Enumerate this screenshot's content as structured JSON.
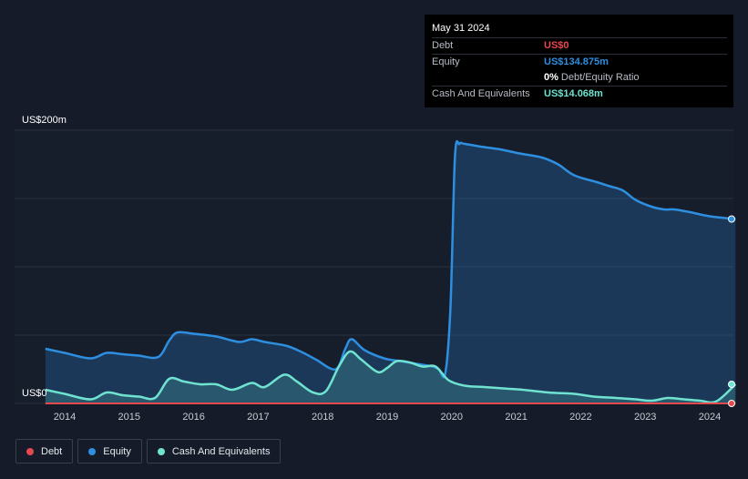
{
  "tooltip": {
    "date": "May 31 2024",
    "debt_label": "Debt",
    "debt_value": "US$0",
    "equity_label": "Equity",
    "equity_value": "US$134.875m",
    "ratio_value": "0%",
    "ratio_label": "Debt/Equity Ratio",
    "cash_label": "Cash And Equivalents",
    "cash_value": "US$14.068m"
  },
  "legend": [
    {
      "name": "Debt",
      "color": "#e5484d"
    },
    {
      "name": "Equity",
      "color": "#2e8fe0"
    },
    {
      "name": "Cash And Equivalents",
      "color": "#6fe3d0"
    }
  ],
  "chart_data": {
    "type": "area",
    "y_top_label": "US$200m",
    "y_bottom_label": "US$0",
    "ylim": [
      0,
      200
    ],
    "xlim": [
      2013.7,
      2024.4
    ],
    "x_ticks": [
      "2014",
      "2015",
      "2016",
      "2017",
      "2018",
      "2019",
      "2020",
      "2021",
      "2022",
      "2023",
      "2024"
    ],
    "series": [
      {
        "name": "Debt",
        "color": "#e5484d",
        "x": [
          2013.7,
          2024.4
        ],
        "values": [
          0,
          0
        ]
      },
      {
        "name": "Equity",
        "color": "#2e8fe0",
        "x": [
          2013.7,
          2014.0,
          2014.4,
          2014.65,
          2014.9,
          2015.15,
          2015.45,
          2015.62,
          2015.75,
          2016.0,
          2016.35,
          2016.7,
          2016.9,
          2017.1,
          2017.45,
          2017.7,
          2017.9,
          2018.2,
          2018.35,
          2018.45,
          2018.65,
          2018.95,
          2019.2,
          2019.45,
          2019.7,
          2019.8,
          2019.9,
          2019.98,
          2020.05,
          2020.12,
          2020.2,
          2020.45,
          2020.75,
          2021.05,
          2021.4,
          2021.65,
          2021.9,
          2022.25,
          2022.45,
          2022.65,
          2022.85,
          2023.1,
          2023.3,
          2023.45,
          2023.7,
          2024.0,
          2024.4
        ],
        "values": [
          40,
          37,
          33,
          37,
          36,
          35,
          34,
          46,
          52,
          51,
          49,
          45,
          47,
          45,
          42,
          37,
          32,
          25,
          40,
          47,
          39,
          33,
          31,
          29,
          27,
          25,
          22,
          70,
          180,
          190,
          190,
          188,
          186,
          183,
          180,
          175,
          167,
          162,
          159,
          156,
          149,
          144,
          142,
          142,
          140,
          137,
          135
        ]
      },
      {
        "name": "Cash And Equivalents",
        "color": "#6fe3d0",
        "x": [
          2013.7,
          2014.0,
          2014.4,
          2014.65,
          2014.9,
          2015.15,
          2015.4,
          2015.62,
          2015.85,
          2016.1,
          2016.35,
          2016.6,
          2016.9,
          2017.1,
          2017.4,
          2017.6,
          2017.85,
          2018.05,
          2018.25,
          2018.42,
          2018.6,
          2018.85,
          2019.0,
          2019.15,
          2019.35,
          2019.55,
          2019.75,
          2019.95,
          2020.2,
          2020.5,
          2020.8,
          2021.1,
          2021.5,
          2021.9,
          2022.2,
          2022.55,
          2022.85,
          2023.1,
          2023.35,
          2023.6,
          2023.85,
          2024.1,
          2024.4
        ],
        "values": [
          10,
          7,
          3,
          8,
          6,
          5,
          4,
          18,
          16,
          14,
          14,
          10,
          15,
          12,
          21,
          16,
          8,
          9,
          27,
          38,
          32,
          23,
          26,
          31,
          30,
          27,
          27,
          17,
          13,
          12,
          11,
          10,
          8,
          7,
          5,
          4,
          3,
          2,
          4,
          3,
          2,
          1.5,
          14
        ]
      }
    ]
  }
}
